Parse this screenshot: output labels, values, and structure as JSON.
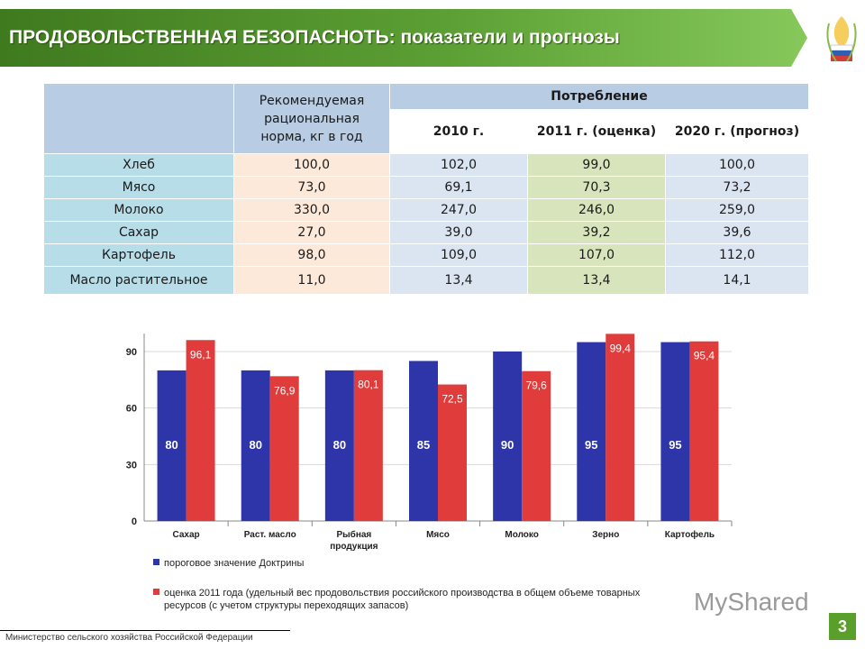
{
  "header": {
    "title": "ПРОДОВОЛЬСТВЕННАЯ БЕЗОПАСНОТЬ: показатели и прогнозы",
    "colors": {
      "banner_dark": "#3f7a1f",
      "banner_light": "#7cc04a"
    },
    "logo": "wheat-emblem-icon"
  },
  "table": {
    "norm_header": "Рекомендуемая рациональная норма, кг в год",
    "consumption_header": "Потребление",
    "years": [
      "2010 г.",
      "2011 г. (оценка)",
      "2020 г. (прогноз)"
    ],
    "rows": [
      {
        "name": "Хлеб",
        "norm": "100,0",
        "y2010": "102,0",
        "y2011": "99,0",
        "y2020": "100,0"
      },
      {
        "name": "Мясо",
        "norm": "73,0",
        "y2010": "69,1",
        "y2011": "70,3",
        "y2020": "73,2"
      },
      {
        "name": "Молоко",
        "norm": "330,0",
        "y2010": "247,0",
        "y2011": "246,0",
        "y2020": "259,0"
      },
      {
        "name": "Сахар",
        "norm": "27,0",
        "y2010": "39,0",
        "y2011": "39,2",
        "y2020": "39,6"
      },
      {
        "name": "Картофель",
        "norm": "98,0",
        "y2010": "109,0",
        "y2011": "107,0",
        "y2020": "112,0"
      },
      {
        "name": "Масло растительное",
        "norm": "11,0",
        "y2010": "13,4",
        "y2011": "13,4",
        "y2020": "14,1"
      }
    ]
  },
  "chart_data": {
    "type": "bar",
    "categories": [
      "Сахар",
      "Раст. масло",
      "Рыбная продукция",
      "Мясо",
      "Молоко",
      "Зерно",
      "Картофель"
    ],
    "series": [
      {
        "name": "пороговое значение Доктрины",
        "values": [
          80,
          80,
          80,
          85,
          90,
          95,
          95
        ],
        "labels": [
          "80",
          "80",
          "80",
          "85",
          "90",
          "95",
          "95"
        ],
        "color": "#2e35a8"
      },
      {
        "name": "оценка 2011 года (удельный вес продовольствия российского производства в общем объеме товарных ресурсов (с учетом структуры переходящих запасов)",
        "values": [
          96.1,
          76.9,
          80.1,
          72.5,
          79.6,
          99.4,
          95.4
        ],
        "labels": [
          "96,1",
          "76,9",
          "80,1",
          "72,5",
          "79,6",
          "99,4",
          "95,4"
        ],
        "color": "#e03c3c"
      }
    ],
    "yticks": [
      "0",
      "30",
      "60",
      "90"
    ],
    "ylim": [
      0,
      100
    ],
    "grid": true,
    "legend_position": "bottom"
  },
  "footer": {
    "ministry": "Министерство сельского хозяйства Российской Федерации",
    "watermark": "MyShared",
    "page": "3"
  }
}
